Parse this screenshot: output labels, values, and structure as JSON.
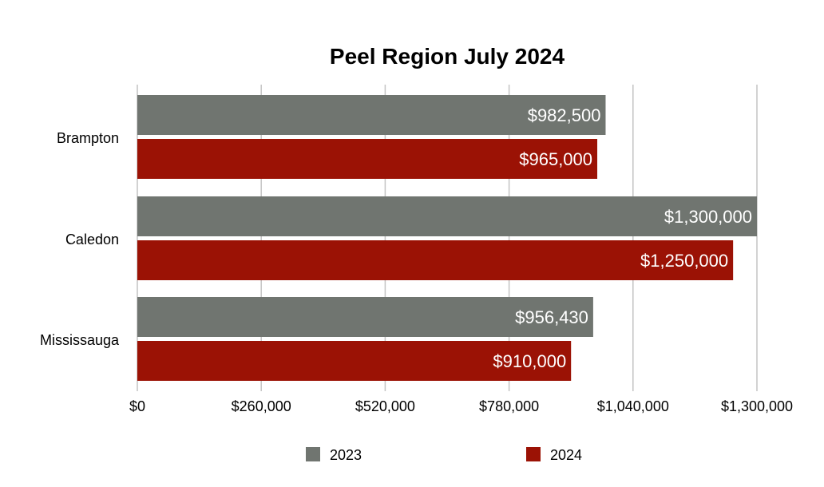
{
  "chart_data": {
    "type": "bar",
    "orientation": "horizontal",
    "title": "Peel Region July 2024",
    "categories": [
      "Brampton",
      "Caledon",
      "Mississauga"
    ],
    "series": [
      {
        "name": "2023",
        "color": "#707570",
        "values": [
          982500,
          1300000,
          956430
        ],
        "labels": [
          "$982,500",
          "$1,300,000",
          "$956,430"
        ]
      },
      {
        "name": "2024",
        "color": "#9b1205",
        "values": [
          965000,
          1250000,
          910000
        ],
        "labels": [
          "$965,000",
          "$1,250,000",
          "$910,000"
        ]
      }
    ],
    "xlim": [
      0,
      1300000
    ],
    "x_ticks": [
      0,
      260000,
      520000,
      780000,
      1040000,
      1300000
    ],
    "x_tick_labels": [
      "$0",
      "$260,000",
      "$520,000",
      "$780,000",
      "$1,040,000",
      "$1,300,000"
    ],
    "grid": "vertical",
    "legend_position": "bottom"
  }
}
